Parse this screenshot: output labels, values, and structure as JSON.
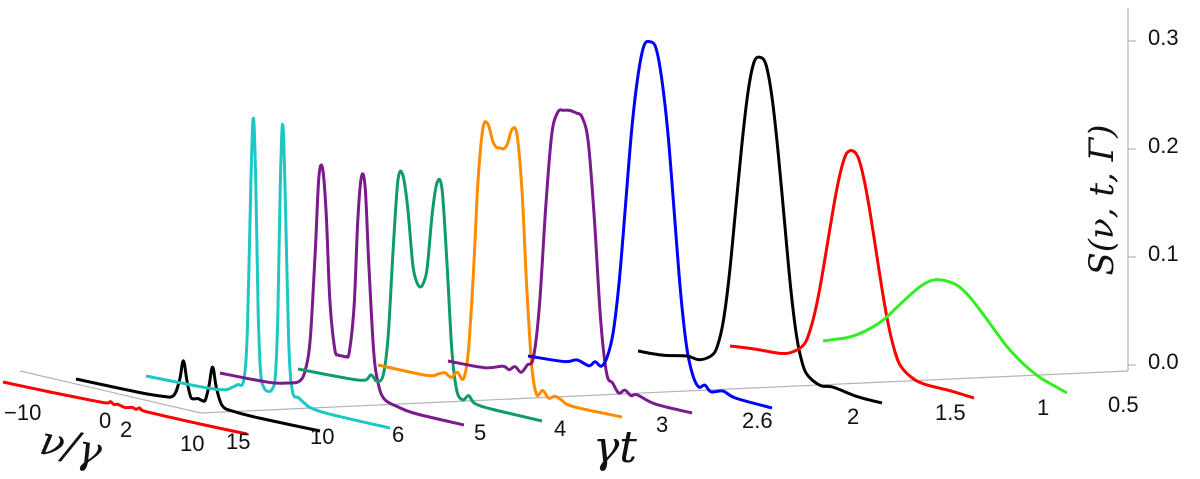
{
  "chart_data": {
    "type": "line",
    "title": "",
    "zlabel": "S(ν, t, Γ)",
    "tlabel": "γt",
    "nulabel": "ν/γ",
    "z_ticks": [
      "0.0",
      "0.1",
      "0.2",
      "0.3"
    ],
    "z_range": [
      0,
      0.32
    ],
    "nu_ticks": [
      "−10",
      "0",
      "2",
      "10"
    ],
    "nu_range": [
      -10,
      10
    ],
    "t_ticks": [
      "15",
      "10",
      "6",
      "5",
      "4",
      "3",
      "2.6",
      "2",
      "1.5",
      "1",
      "0.5"
    ],
    "grid": false,
    "series": [
      {
        "t": "15",
        "color": "#ff0000",
        "nu": [
          -10,
          -6,
          -3,
          -1.5,
          -1.2,
          -0.9,
          -0.6,
          0,
          0.6,
          0.9,
          1.2,
          1.5,
          3,
          6,
          10
        ],
        "S": [
          0,
          0,
          0.0005,
          0.001,
          0.003,
          0.001,
          0.002,
          0.0005,
          0.002,
          0.001,
          0.003,
          0.001,
          0.0005,
          0,
          0
        ]
      },
      {
        "t": "10",
        "color": "#000000",
        "nu": [
          -10,
          -5,
          -3,
          -2,
          -1.5,
          -1.2,
          -0.9,
          -0.6,
          -0.3,
          0,
          0.3,
          0.6,
          0.9,
          1.2,
          1.5,
          2,
          3,
          5,
          10
        ],
        "S": [
          0,
          0,
          0.001,
          0.004,
          0.02,
          0.038,
          0.02,
          0.006,
          0.005,
          0.006,
          0.005,
          0.006,
          0.02,
          0.038,
          0.02,
          0.004,
          0.001,
          0,
          0
        ]
      },
      {
        "t": "6",
        "color": "#1fc6c6",
        "nu": [
          -10,
          -5,
          -3.5,
          -3,
          -2.5,
          -2,
          -1.7,
          -1.4,
          -1.2,
          -1,
          -0.8,
          -0.6,
          -0.3,
          0,
          0.3,
          0.6,
          0.8,
          1,
          1.2,
          1.4,
          1.7,
          2,
          2.5,
          3,
          3.5,
          5,
          10
        ],
        "S": [
          0,
          0.001,
          0.003,
          0.006,
          0.01,
          0.015,
          0.06,
          0.2,
          0.26,
          0.2,
          0.08,
          0.025,
          0.012,
          0.01,
          0.012,
          0.025,
          0.08,
          0.2,
          0.26,
          0.2,
          0.06,
          0.015,
          0.01,
          0.006,
          0.003,
          0.001,
          0
        ]
      },
      {
        "t": "5",
        "color": "#7a1a8c",
        "nu": [
          -10,
          -6,
          -4.5,
          -3.5,
          -3,
          -2.6,
          -2.2,
          -1.9,
          -1.6,
          -1.3,
          -1,
          -0.6,
          -0.3,
          0,
          0.3,
          0.6,
          1,
          1.3,
          1.6,
          1.9,
          2.2,
          2.6,
          3,
          3.5,
          4.5,
          6,
          10
        ],
        "S": [
          0,
          0.001,
          0.004,
          0.008,
          0.02,
          0.05,
          0.13,
          0.2,
          0.21,
          0.17,
          0.09,
          0.045,
          0.04,
          0.04,
          0.04,
          0.045,
          0.09,
          0.17,
          0.21,
          0.2,
          0.13,
          0.05,
          0.02,
          0.008,
          0.004,
          0.001,
          0
        ]
      },
      {
        "t": "4",
        "color": "#119b6a",
        "nu": [
          -10,
          -6,
          -4.5,
          -4,
          -3.5,
          -3,
          -2.6,
          -2.2,
          -1.8,
          -1.4,
          -1,
          -0.6,
          -0.3,
          0,
          0.3,
          0.6,
          1,
          1.4,
          1.8,
          2.2,
          2.6,
          3,
          3.5,
          4,
          4.5,
          6,
          10
        ],
        "S": [
          0,
          0.001,
          0.003,
          0.009,
          0.004,
          0.012,
          0.05,
          0.13,
          0.195,
          0.2,
          0.17,
          0.12,
          0.105,
          0.1,
          0.105,
          0.12,
          0.17,
          0.2,
          0.195,
          0.13,
          0.05,
          0.012,
          0.004,
          0.009,
          0.003,
          0.001,
          0
        ]
      },
      {
        "t": "3",
        "color": "#ff8c00",
        "nu": [
          -10,
          -6,
          -5,
          -4.5,
          -4,
          -3.5,
          -3,
          -2.6,
          -2.2,
          -1.8,
          -1.4,
          -1,
          -0.6,
          -0.3,
          0,
          0.3,
          0.6,
          1,
          1.4,
          1.8,
          2.2,
          2.6,
          3,
          3.5,
          4,
          4.5,
          5,
          6,
          10
        ],
        "S": [
          0,
          0,
          0.004,
          0.006,
          0.003,
          0.009,
          0.004,
          0.03,
          0.1,
          0.19,
          0.24,
          0.245,
          0.23,
          0.225,
          0.225,
          0.225,
          0.23,
          0.245,
          0.24,
          0.19,
          0.1,
          0.03,
          0.004,
          0.009,
          0.003,
          0.006,
          0.004,
          0,
          0
        ]
      },
      {
        "t": "2.6",
        "color": "#7a1a8c",
        "nu": [
          -10,
          -7,
          -5.5,
          -5,
          -4.5,
          -4,
          -3.5,
          -3,
          -2.5,
          -2,
          -1.5,
          -1,
          -0.5,
          0,
          0.5,
          1,
          1.5,
          2,
          2.5,
          3,
          3.5,
          4,
          4.5,
          5,
          5.5,
          7,
          10
        ],
        "S": [
          0,
          0.001,
          0.006,
          0.004,
          0.008,
          0.004,
          0.012,
          0.02,
          0.07,
          0.16,
          0.23,
          0.252,
          0.255,
          0.256,
          0.255,
          0.252,
          0.23,
          0.16,
          0.07,
          0.02,
          0.012,
          0.004,
          0.008,
          0.004,
          0.006,
          0.001,
          0
        ]
      },
      {
        "t": "2",
        "color": "#0000ff",
        "nu": [
          -10,
          -7,
          -6,
          -5,
          -4.5,
          -4,
          -3.5,
          -3,
          -2.5,
          -2,
          -1.5,
          -1,
          -0.5,
          0,
          0.5,
          1,
          1.5,
          2,
          2.5,
          3,
          3.5,
          4,
          4.5,
          5,
          6,
          7,
          10
        ],
        "S": [
          0,
          0.002,
          0.006,
          0.003,
          0.008,
          0.005,
          0.015,
          0.04,
          0.09,
          0.16,
          0.23,
          0.28,
          0.31,
          0.315,
          0.31,
          0.28,
          0.23,
          0.16,
          0.09,
          0.04,
          0.015,
          0.005,
          0.008,
          0.003,
          0.006,
          0.002,
          0
        ]
      },
      {
        "t": "1.5",
        "color": "#000000",
        "nu": [
          -10,
          -8,
          -6,
          -5,
          -4,
          -3.5,
          -3,
          -2.5,
          -2,
          -1.5,
          -1,
          -0.5,
          0,
          0.5,
          1,
          1.5,
          2,
          2.5,
          3,
          3.5,
          4,
          5,
          6,
          8,
          10
        ],
        "S": [
          0,
          0.001,
          0.005,
          0.004,
          0.01,
          0.02,
          0.045,
          0.09,
          0.15,
          0.21,
          0.26,
          0.29,
          0.296,
          0.29,
          0.26,
          0.21,
          0.15,
          0.09,
          0.045,
          0.02,
          0.01,
          0.004,
          0.005,
          0.001,
          0
        ]
      },
      {
        "t": "1",
        "color": "#ff0000",
        "nu": [
          -10,
          -8,
          -6,
          -5,
          -4,
          -3.5,
          -3,
          -2.5,
          -2,
          -1.5,
          -1,
          -0.5,
          0,
          0.5,
          1,
          1.5,
          2,
          2.5,
          3,
          3.5,
          4,
          5,
          6,
          8,
          10
        ],
        "S": [
          0,
          0.002,
          0.003,
          0.006,
          0.015,
          0.028,
          0.05,
          0.08,
          0.115,
          0.15,
          0.18,
          0.2,
          0.205,
          0.2,
          0.18,
          0.15,
          0.115,
          0.08,
          0.05,
          0.028,
          0.015,
          0.006,
          0.003,
          0.002,
          0
        ]
      },
      {
        "t": "0.5",
        "color": "#33ee22",
        "nu": [
          -10,
          -9,
          -8,
          -7,
          -6,
          -5,
          -4,
          -3,
          -2,
          -1,
          0,
          1,
          2,
          3,
          4,
          5,
          6,
          7,
          8,
          9,
          10
        ],
        "S": [
          0,
          0.004,
          0.008,
          0.014,
          0.022,
          0.032,
          0.045,
          0.058,
          0.07,
          0.078,
          0.08,
          0.078,
          0.07,
          0.058,
          0.045,
          0.032,
          0.022,
          0.014,
          0.008,
          0.004,
          0
        ]
      }
    ]
  }
}
